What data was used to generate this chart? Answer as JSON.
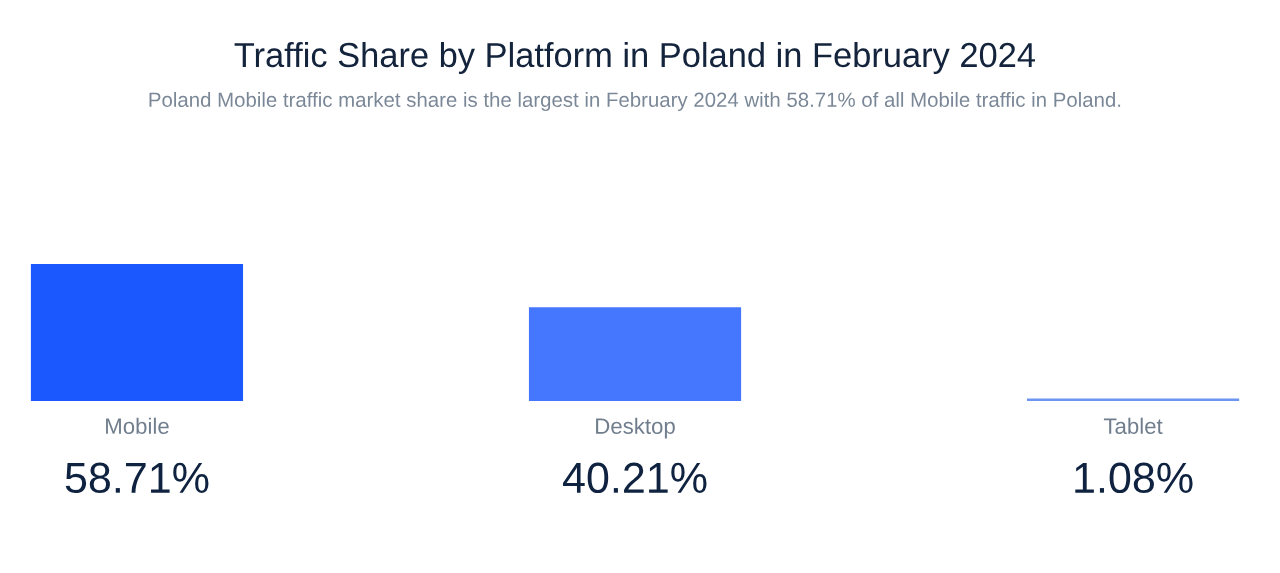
{
  "chart_data": {
    "type": "bar",
    "title": "Traffic Share by Platform in Poland in February 2024",
    "subtitle": "Poland Mobile traffic market share is the largest in February 2024 with 58.71% of all Mobile traffic in Poland.",
    "categories": [
      "Mobile",
      "Desktop",
      "Tablet"
    ],
    "values": [
      58.71,
      40.21,
      1.08
    ],
    "colors": [
      "#1b58fe",
      "#4477fe",
      "#6c95f2"
    ],
    "value_labels": [
      "58.71%",
      "40.21%",
      "1.08%"
    ]
  }
}
